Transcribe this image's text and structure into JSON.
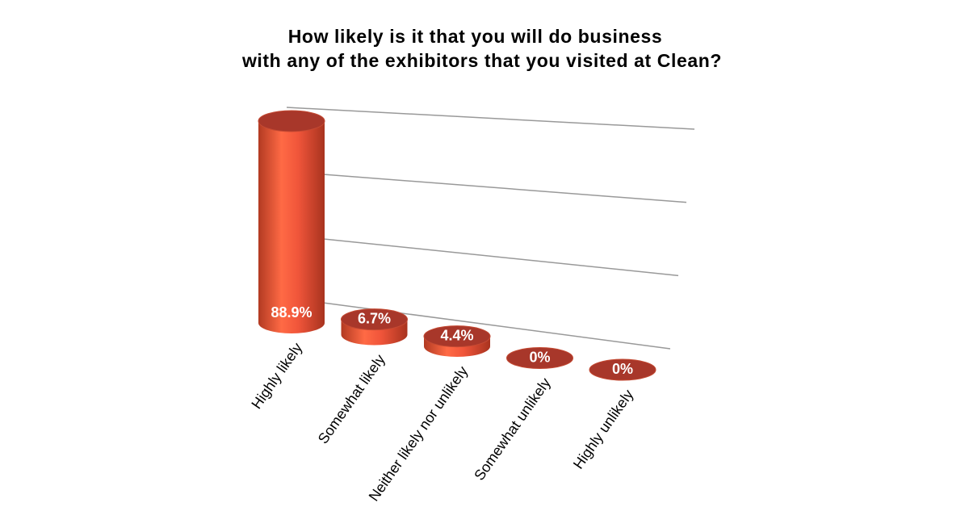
{
  "chart_data": {
    "type": "bar3d",
    "title": [
      "How likely is it that you will do business",
      "with any of the exhibitors that you visited at Clean?"
    ],
    "categories": [
      "Highly likely",
      "Somewhat likely",
      "Neither likely nor unlikely",
      "Somewhat unlikely",
      "Highly unlikely"
    ],
    "values": [
      88.9,
      6.7,
      4.4,
      0,
      0
    ],
    "value_labels": [
      "88.9%",
      "6.7%",
      "4.4%",
      "0%",
      "0%"
    ],
    "color": "#e8532f",
    "ylim": [
      0,
      90
    ],
    "yticks": [
      0,
      30,
      60,
      90
    ],
    "grid": true
  }
}
